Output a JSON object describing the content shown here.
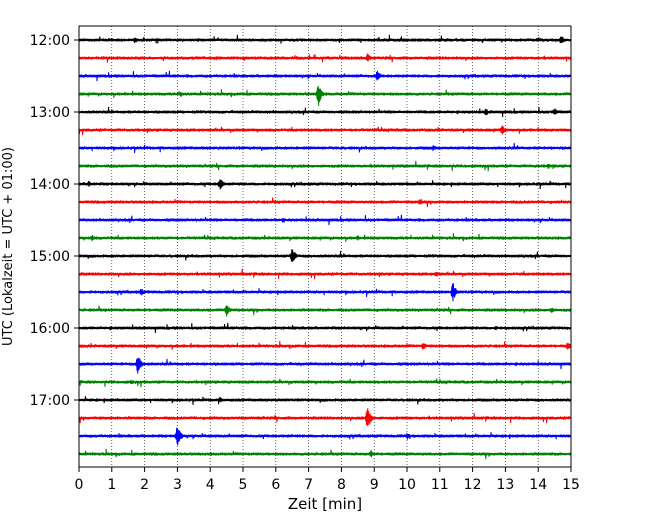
{
  "chart_data": {
    "type": "line",
    "title": "",
    "xlabel": "Zeit  [min]",
    "ylabel": "UTC (Lokalzeit = UTC + 01:00)",
    "xlim": [
      0,
      15
    ],
    "x_ticks": [
      0,
      1,
      2,
      3,
      4,
      5,
      6,
      7,
      8,
      9,
      10,
      11,
      12,
      13,
      14,
      15
    ],
    "x_grid": "dotted vertical",
    "y_ticks": [
      "12:00",
      "13:00",
      "14:00",
      "15:00",
      "16:00",
      "17:00"
    ],
    "trace_colors": [
      "#000000",
      "#ff0000",
      "#0000ff",
      "#008000"
    ],
    "traces": [
      {
        "start": "12:00",
        "color": "#000000",
        "events": [
          {
            "t": 1.7,
            "amp": 0.25
          },
          {
            "t": 14.7,
            "amp": 0.35
          }
        ]
      },
      {
        "start": "12:15",
        "color": "#ff0000",
        "events": [
          {
            "t": 8.8,
            "amp": 0.35
          }
        ]
      },
      {
        "start": "12:30",
        "color": "#0000ff",
        "events": [
          {
            "t": 9.1,
            "amp": 0.45
          }
        ]
      },
      {
        "start": "12:45",
        "color": "#008000",
        "events": [
          {
            "t": 7.3,
            "amp": 0.9
          },
          {
            "t": 3.1,
            "amp": 0.25
          }
        ]
      },
      {
        "start": "13:00",
        "color": "#000000",
        "events": [
          {
            "t": 12.4,
            "amp": 0.3
          },
          {
            "t": 14.5,
            "amp": 0.35
          }
        ]
      },
      {
        "start": "13:15",
        "color": "#ff0000",
        "events": [
          {
            "t": 12.9,
            "amp": 0.4
          }
        ]
      },
      {
        "start": "13:30",
        "color": "#0000ff",
        "events": [
          {
            "t": 10.8,
            "amp": 0.25
          }
        ]
      },
      {
        "start": "13:45",
        "color": "#008000",
        "events": [
          {
            "t": 14.3,
            "amp": 0.25
          }
        ]
      },
      {
        "start": "14:00",
        "color": "#000000",
        "events": [
          {
            "t": 4.3,
            "amp": 0.55
          },
          {
            "t": 0.3,
            "amp": 0.25
          }
        ]
      },
      {
        "start": "14:15",
        "color": "#ff0000",
        "events": [
          {
            "t": 10.4,
            "amp": 0.3
          }
        ]
      },
      {
        "start": "14:30",
        "color": "#0000ff",
        "events": [
          {
            "t": 6.2,
            "amp": 0.2
          }
        ]
      },
      {
        "start": "14:45",
        "color": "#008000",
        "events": [
          {
            "t": 0.4,
            "amp": 0.25
          },
          {
            "t": 8.5,
            "amp": 0.2
          }
        ]
      },
      {
        "start": "15:00",
        "color": "#000000",
        "events": [
          {
            "t": 6.5,
            "amp": 0.65
          }
        ]
      },
      {
        "start": "15:15",
        "color": "#ff0000",
        "events": [
          {
            "t": 10.9,
            "amp": 0.25
          }
        ]
      },
      {
        "start": "15:30",
        "color": "#0000ff",
        "events": [
          {
            "t": 11.4,
            "amp": 0.75
          },
          {
            "t": 1.9,
            "amp": 0.3
          }
        ]
      },
      {
        "start": "15:45",
        "color": "#008000",
        "events": [
          {
            "t": 4.5,
            "amp": 0.55
          },
          {
            "t": 14.4,
            "amp": 0.25
          }
        ]
      },
      {
        "start": "16:00",
        "color": "#000000",
        "events": [
          {
            "t": 12.7,
            "amp": 0.2
          }
        ]
      },
      {
        "start": "16:15",
        "color": "#ff0000",
        "events": [
          {
            "t": 10.5,
            "amp": 0.35
          },
          {
            "t": 14.9,
            "amp": 0.3
          }
        ]
      },
      {
        "start": "16:30",
        "color": "#0000ff",
        "events": [
          {
            "t": 1.8,
            "amp": 0.85
          }
        ]
      },
      {
        "start": "16:45",
        "color": "#008000",
        "events": [
          {
            "t": 1.6,
            "amp": 0.2
          }
        ]
      },
      {
        "start": "17:00",
        "color": "#000000",
        "events": [
          {
            "t": 4.3,
            "amp": 0.25
          }
        ]
      },
      {
        "start": "17:15",
        "color": "#ff0000",
        "events": [
          {
            "t": 8.8,
            "amp": 0.95
          }
        ]
      },
      {
        "start": "17:30",
        "color": "#0000ff",
        "events": [
          {
            "t": 3.0,
            "amp": 0.9
          },
          {
            "t": 10.0,
            "amp": 0.3
          }
        ]
      },
      {
        "start": "17:45",
        "color": "#008000",
        "events": [
          {
            "t": 8.9,
            "amp": 0.3
          }
        ]
      }
    ]
  }
}
